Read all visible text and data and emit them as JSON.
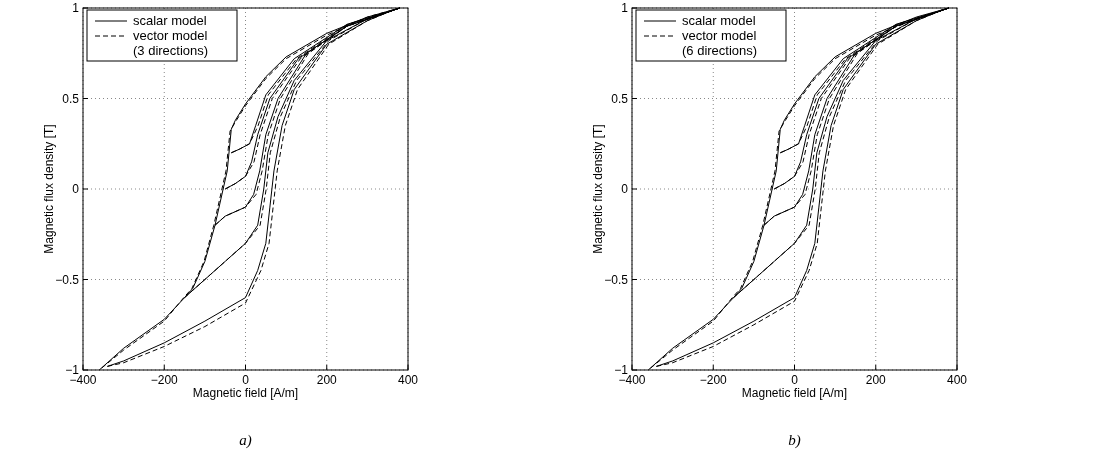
{
  "chart_data": [
    {
      "type": "line",
      "xlabel": "Magnetic field [A/m]",
      "ylabel": "Magnetic flux density [T]",
      "annotations": [
        "a)"
      ],
      "xlim": [
        -400,
        400
      ],
      "ylim": [
        -1,
        1
      ],
      "xticks": [
        -400,
        -200,
        0,
        200,
        400
      ],
      "yticks": [
        -1,
        -0.5,
        0,
        0.5,
        1
      ],
      "grid": true,
      "legend": "top left",
      "series": [
        {
          "name": "scalar model",
          "color": "#000000",
          "line_style": "solid",
          "x": [
            380,
            300,
            200,
            100,
            50,
            0,
            -25,
            -35,
            -45,
            -55,
            -75,
            -100,
            -130,
            -150,
            -200,
            -300,
            -360
          ],
          "values": [
            1,
            0.95,
            0.86,
            0.73,
            0.62,
            0.47,
            0.38,
            0.33,
            0.1,
            0,
            -0.2,
            -0.4,
            -0.55,
            -0.6,
            -0.72,
            -0.88,
            -1
          ]
        },
        {
          "color": "#000000",
          "line_style": "solid",
          "x": [
            -340,
            -300,
            -200,
            -100,
            0,
            30,
            50,
            60,
            70,
            90,
            120,
            200,
            300,
            365
          ],
          "values": [
            -0.98,
            -0.95,
            -0.85,
            -0.73,
            -0.6,
            -0.45,
            -0.3,
            -0.1,
            0.1,
            0.35,
            0.55,
            0.8,
            0.93,
            0.99
          ]
        },
        {
          "color": "#000000",
          "line_style": "solid",
          "x": [
            -150,
            -100,
            -50,
            0,
            30,
            45,
            55,
            80,
            120,
            200,
            300,
            380
          ],
          "values": [
            -0.6,
            -0.5,
            -0.4,
            -0.3,
            -0.2,
            0,
            0.2,
            0.4,
            0.6,
            0.82,
            0.94,
            1
          ]
        },
        {
          "color": "#000000",
          "line_style": "solid",
          "x": [
            -75,
            -50,
            0,
            20,
            35,
            50,
            80,
            150,
            250,
            380
          ],
          "values": [
            -0.2,
            -0.15,
            -0.1,
            -0.03,
            0.1,
            0.3,
            0.5,
            0.75,
            0.9,
            1
          ]
        },
        {
          "color": "#000000",
          "line_style": "solid",
          "x": [
            -50,
            -25,
            0,
            15,
            30,
            60,
            130,
            250,
            380
          ],
          "values": [
            0,
            0.03,
            0.07,
            0.15,
            0.3,
            0.5,
            0.72,
            0.9,
            1
          ]
        },
        {
          "color": "#000000",
          "line_style": "solid",
          "x": [
            -35,
            -15,
            10,
            25,
            50,
            120,
            250,
            380
          ],
          "values": [
            0.2,
            0.22,
            0.25,
            0.35,
            0.52,
            0.72,
            0.91,
            1
          ]
        },
        {
          "name": "vector model\n(3 directions)",
          "color": "#000000",
          "line_style": "dashed",
          "x": [
            380,
            300,
            200,
            100,
            50,
            0,
            -25,
            -38,
            -48,
            -58,
            -78,
            -102,
            -132,
            -152,
            -200,
            -300,
            -360
          ],
          "values": [
            1,
            0.95,
            0.85,
            0.72,
            0.61,
            0.46,
            0.37,
            0.32,
            0.1,
            0,
            -0.2,
            -0.4,
            -0.55,
            -0.6,
            -0.73,
            -0.89,
            -1
          ]
        },
        {
          "color": "#000000",
          "line_style": "dashed",
          "x": [
            -340,
            -300,
            -200,
            -100,
            0,
            38,
            58,
            68,
            78,
            98,
            128,
            205,
            300,
            365
          ],
          "values": [
            -0.98,
            -0.96,
            -0.87,
            -0.76,
            -0.63,
            -0.45,
            -0.3,
            -0.1,
            0.1,
            0.35,
            0.55,
            0.8,
            0.93,
            0.99
          ]
        },
        {
          "color": "#000000",
          "line_style": "dashed",
          "x": [
            -150,
            -100,
            -50,
            0,
            36,
            51,
            61,
            86,
            126,
            205,
            300,
            380
          ],
          "values": [
            -0.6,
            -0.5,
            -0.4,
            -0.3,
            -0.2,
            0,
            0.2,
            0.4,
            0.6,
            0.82,
            0.94,
            1
          ]
        },
        {
          "color": "#000000",
          "line_style": "dashed",
          "x": [
            -75,
            -50,
            0,
            26,
            41,
            56,
            86,
            155,
            250,
            380
          ],
          "values": [
            -0.2,
            -0.15,
            -0.1,
            -0.03,
            0.1,
            0.3,
            0.5,
            0.75,
            0.9,
            1
          ]
        },
        {
          "color": "#000000",
          "line_style": "dashed",
          "x": [
            -50,
            -25,
            0,
            21,
            36,
            66,
            135,
            250,
            380
          ],
          "values": [
            0,
            0.03,
            0.07,
            0.15,
            0.3,
            0.5,
            0.72,
            0.9,
            1
          ]
        },
        {
          "color": "#000000",
          "line_style": "dashed",
          "x": [
            -35,
            -15,
            10,
            31,
            56,
            126,
            252,
            380
          ],
          "values": [
            0.2,
            0.22,
            0.25,
            0.35,
            0.52,
            0.72,
            0.91,
            1
          ]
        }
      ]
    },
    {
      "type": "line",
      "xlabel": "Magnetic field [A/m]",
      "ylabel": "Magnetic flux density [T]",
      "annotations": [
        "b)"
      ],
      "xlim": [
        -400,
        400
      ],
      "ylim": [
        -1,
        1
      ],
      "xticks": [
        -400,
        -200,
        0,
        200,
        400
      ],
      "yticks": [
        -1,
        -0.5,
        0,
        0.5,
        1
      ],
      "grid": true,
      "legend": "top left",
      "series": [
        {
          "name": "scalar model",
          "color": "#000000",
          "line_style": "solid",
          "x": [
            380,
            300,
            200,
            100,
            50,
            0,
            -25,
            -35,
            -45,
            -55,
            -75,
            -100,
            -130,
            -150,
            -200,
            -300,
            -360
          ],
          "values": [
            1,
            0.95,
            0.86,
            0.73,
            0.62,
            0.47,
            0.38,
            0.33,
            0.1,
            0,
            -0.2,
            -0.4,
            -0.55,
            -0.6,
            -0.72,
            -0.88,
            -1
          ]
        },
        {
          "color": "#000000",
          "line_style": "solid",
          "x": [
            -340,
            -300,
            -200,
            -100,
            0,
            30,
            50,
            60,
            70,
            90,
            120,
            200,
            300,
            365
          ],
          "values": [
            -0.98,
            -0.95,
            -0.85,
            -0.73,
            -0.6,
            -0.45,
            -0.3,
            -0.1,
            0.1,
            0.35,
            0.55,
            0.8,
            0.93,
            0.99
          ]
        },
        {
          "color": "#000000",
          "line_style": "solid",
          "x": [
            -150,
            -100,
            -50,
            0,
            30,
            45,
            55,
            80,
            120,
            200,
            300,
            380
          ],
          "values": [
            -0.6,
            -0.5,
            -0.4,
            -0.3,
            -0.2,
            0,
            0.2,
            0.4,
            0.6,
            0.82,
            0.94,
            1
          ]
        },
        {
          "color": "#000000",
          "line_style": "solid",
          "x": [
            -75,
            -50,
            0,
            20,
            35,
            50,
            80,
            150,
            250,
            380
          ],
          "values": [
            -0.2,
            -0.15,
            -0.1,
            -0.03,
            0.1,
            0.3,
            0.5,
            0.75,
            0.9,
            1
          ]
        },
        {
          "color": "#000000",
          "line_style": "solid",
          "x": [
            -50,
            -25,
            0,
            15,
            30,
            60,
            130,
            250,
            380
          ],
          "values": [
            0,
            0.03,
            0.07,
            0.15,
            0.3,
            0.5,
            0.72,
            0.9,
            1
          ]
        },
        {
          "color": "#000000",
          "line_style": "solid",
          "x": [
            -35,
            -15,
            10,
            25,
            50,
            120,
            250,
            380
          ],
          "values": [
            0.2,
            0.22,
            0.25,
            0.35,
            0.52,
            0.72,
            0.91,
            1
          ]
        },
        {
          "name": "vector model\n(6 directions)",
          "color": "#000000",
          "line_style": "dashed",
          "x": [
            380,
            300,
            200,
            100,
            50,
            0,
            -25,
            -38,
            -48,
            -58,
            -78,
            -103,
            -133,
            -153,
            -200,
            -300,
            -360
          ],
          "values": [
            1,
            0.94,
            0.85,
            0.72,
            0.61,
            0.46,
            0.37,
            0.32,
            0.1,
            0,
            -0.2,
            -0.4,
            -0.55,
            -0.6,
            -0.73,
            -0.89,
            -1
          ]
        },
        {
          "color": "#000000",
          "line_style": "dashed",
          "x": [
            -340,
            -300,
            -200,
            -100,
            0,
            36,
            56,
            66,
            76,
            96,
            126,
            205,
            300,
            365
          ],
          "values": [
            -0.98,
            -0.96,
            -0.87,
            -0.75,
            -0.62,
            -0.45,
            -0.3,
            -0.1,
            0.1,
            0.35,
            0.55,
            0.8,
            0.93,
            0.99
          ]
        },
        {
          "color": "#000000",
          "line_style": "dashed",
          "x": [
            -150,
            -100,
            -50,
            0,
            36,
            51,
            61,
            86,
            126,
            205,
            300,
            380
          ],
          "values": [
            -0.6,
            -0.5,
            -0.4,
            -0.3,
            -0.2,
            0,
            0.2,
            0.4,
            0.6,
            0.82,
            0.94,
            1
          ]
        },
        {
          "color": "#000000",
          "line_style": "dashed",
          "x": [
            -75,
            -50,
            0,
            26,
            41,
            56,
            86,
            155,
            250,
            380
          ],
          "values": [
            -0.2,
            -0.15,
            -0.1,
            -0.03,
            0.1,
            0.3,
            0.5,
            0.75,
            0.9,
            1
          ]
        },
        {
          "color": "#000000",
          "line_style": "dashed",
          "x": [
            -50,
            -25,
            0,
            21,
            36,
            66,
            135,
            250,
            380
          ],
          "values": [
            0,
            0.03,
            0.07,
            0.15,
            0.3,
            0.5,
            0.72,
            0.9,
            1
          ]
        },
        {
          "color": "#000000",
          "line_style": "dashed",
          "x": [
            -35,
            -15,
            10,
            31,
            56,
            126,
            252,
            380
          ],
          "values": [
            0.2,
            0.22,
            0.25,
            0.35,
            0.52,
            0.72,
            0.91,
            1
          ]
        }
      ]
    }
  ]
}
